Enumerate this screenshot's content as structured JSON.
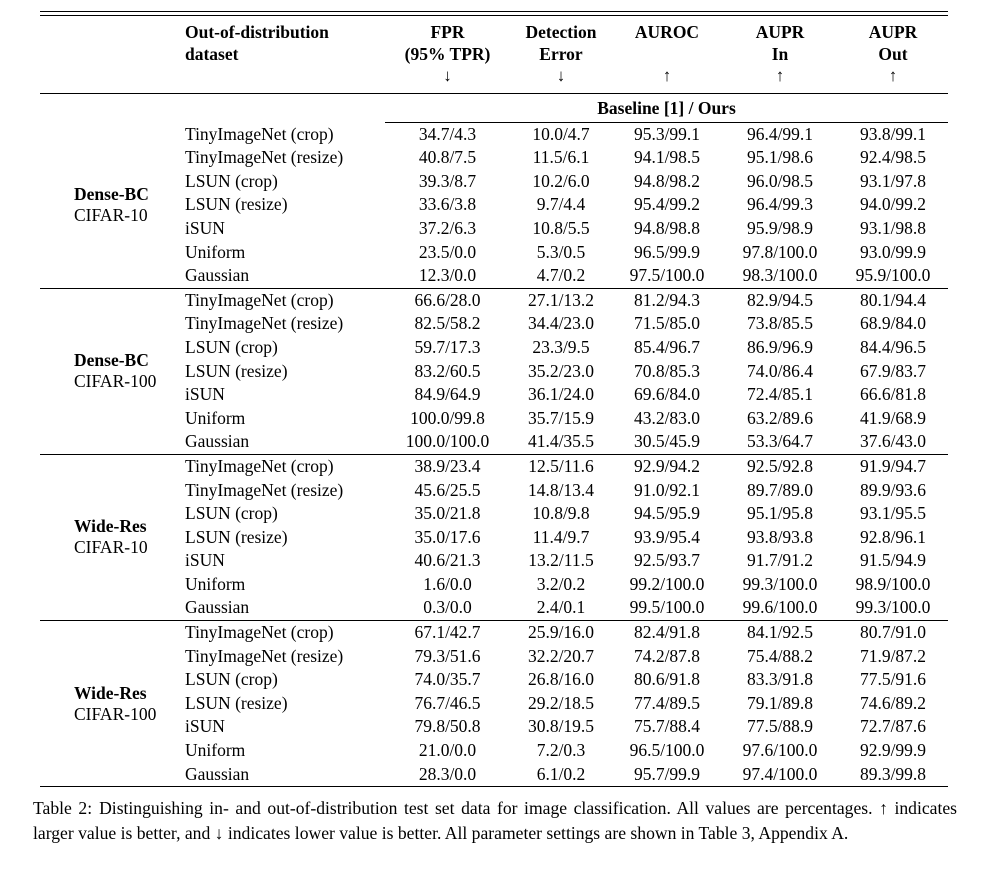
{
  "colors": {
    "background": "#ffffff",
    "text": "#000000",
    "rule": "#000000"
  },
  "table": {
    "header": {
      "cols": [
        {
          "line1": "Out-of-distribution",
          "line2": "dataset",
          "arrow": ""
        },
        {
          "line1": "FPR",
          "line2": "(95% TPR)",
          "arrow": "↓"
        },
        {
          "line1": "Detection",
          "line2": "Error",
          "arrow": "↓"
        },
        {
          "line1": "AUROC",
          "line2": "",
          "arrow": "↑"
        },
        {
          "line1": "AUPR",
          "line2": "In",
          "arrow": "↑"
        },
        {
          "line1": "AUPR",
          "line2": "Out",
          "arrow": "↑"
        }
      ],
      "subheader": "Baseline [1] / Ours"
    },
    "value_format": "baseline/ours",
    "sections": [
      {
        "model": "Dense-BC",
        "dataset": "CIFAR-10",
        "rows": [
          {
            "ood": "TinyImageNet (crop)",
            "values": [
              "34.7/4.3",
              "10.0/4.7",
              "95.3/99.1",
              "96.4/99.1",
              "93.8/99.1"
            ]
          },
          {
            "ood": "TinyImageNet (resize)",
            "values": [
              "40.8/7.5",
              "11.5/6.1",
              "94.1/98.5",
              "95.1/98.6",
              "92.4/98.5"
            ]
          },
          {
            "ood": "LSUN (crop)",
            "values": [
              "39.3/8.7",
              "10.2/6.0",
              "94.8/98.2",
              "96.0/98.5",
              "93.1/97.8"
            ]
          },
          {
            "ood": "LSUN (resize)",
            "values": [
              "33.6/3.8",
              "9.7/4.4",
              "95.4/99.2",
              "96.4/99.3",
              "94.0/99.2"
            ]
          },
          {
            "ood": "iSUN",
            "values": [
              "37.2/6.3",
              "10.8/5.5",
              "94.8/98.8",
              "95.9/98.9",
              "93.1/98.8"
            ]
          },
          {
            "ood": "Uniform",
            "values": [
              "23.5/0.0",
              "5.3/0.5",
              "96.5/99.9",
              "97.8/100.0",
              "93.0/99.9"
            ]
          },
          {
            "ood": "Gaussian",
            "values": [
              "12.3/0.0",
              "4.7/0.2",
              "97.5/100.0",
              "98.3/100.0",
              "95.9/100.0"
            ]
          }
        ]
      },
      {
        "model": "Dense-BC",
        "dataset": "CIFAR-100",
        "rows": [
          {
            "ood": "TinyImageNet (crop)",
            "values": [
              "66.6/28.0",
              "27.1/13.2",
              "81.2/94.3",
              "82.9/94.5",
              "80.1/94.4"
            ]
          },
          {
            "ood": "TinyImageNet (resize)",
            "values": [
              "82.5/58.2",
              "34.4/23.0",
              "71.5/85.0",
              "73.8/85.5",
              "68.9/84.0"
            ]
          },
          {
            "ood": "LSUN (crop)",
            "values": [
              "59.7/17.3",
              "23.3/9.5",
              "85.4/96.7",
              "86.9/96.9",
              "84.4/96.5"
            ]
          },
          {
            "ood": "LSUN (resize)",
            "values": [
              "83.2/60.5",
              "35.2/23.0",
              "70.8/85.3",
              "74.0/86.4",
              "67.9/83.7"
            ]
          },
          {
            "ood": "iSUN",
            "values": [
              "84.9/64.9",
              "36.1/24.0",
              "69.6/84.0",
              "72.4/85.1",
              "66.6/81.8"
            ]
          },
          {
            "ood": "Uniform",
            "values": [
              "100.0/99.8",
              "35.7/15.9",
              "43.2/83.0",
              "63.2/89.6",
              "41.9/68.9"
            ]
          },
          {
            "ood": "Gaussian",
            "values": [
              "100.0/100.0",
              "41.4/35.5",
              "30.5/45.9",
              "53.3/64.7",
              "37.6/43.0"
            ]
          }
        ]
      },
      {
        "model": "Wide-Res",
        "dataset": "CIFAR-10",
        "rows": [
          {
            "ood": "TinyImageNet (crop)",
            "values": [
              "38.9/23.4",
              "12.5/11.6",
              "92.9/94.2",
              "92.5/92.8",
              "91.9/94.7"
            ]
          },
          {
            "ood": "TinyImageNet (resize)",
            "values": [
              "45.6/25.5",
              "14.8/13.4",
              "91.0/92.1",
              "89.7/89.0",
              "89.9/93.6"
            ]
          },
          {
            "ood": "LSUN (crop)",
            "values": [
              "35.0/21.8",
              "10.8/9.8",
              "94.5/95.9",
              "95.1/95.8",
              "93.1/95.5"
            ]
          },
          {
            "ood": "LSUN (resize)",
            "values": [
              "35.0/17.6",
              "11.4/9.7",
              "93.9/95.4",
              "93.8/93.8",
              "92.8/96.1"
            ]
          },
          {
            "ood": "iSUN",
            "values": [
              "40.6/21.3",
              "13.2/11.5",
              "92.5/93.7",
              "91.7/91.2",
              "91.5/94.9"
            ]
          },
          {
            "ood": "Uniform",
            "values": [
              "1.6/0.0",
              "3.2/0.2",
              "99.2/100.0",
              "99.3/100.0",
              "98.9/100.0"
            ]
          },
          {
            "ood": "Gaussian",
            "values": [
              "0.3/0.0",
              "2.4/0.1",
              "99.5/100.0",
              "99.6/100.0",
              "99.3/100.0"
            ]
          }
        ]
      },
      {
        "model": "Wide-Res",
        "dataset": "CIFAR-100",
        "rows": [
          {
            "ood": "TinyImageNet (crop)",
            "values": [
              "67.1/42.7",
              "25.9/16.0",
              "82.4/91.8",
              "84.1/92.5",
              "80.7/91.0"
            ]
          },
          {
            "ood": "TinyImageNet (resize)",
            "values": [
              "79.3/51.6",
              "32.2/20.7",
              "74.2/87.8",
              "75.4/88.2",
              "71.9/87.2"
            ]
          },
          {
            "ood": "LSUN (crop)",
            "values": [
              "74.0/35.7",
              "26.8/16.0",
              "80.6/91.8",
              "83.3/91.8",
              "77.5/91.6"
            ]
          },
          {
            "ood": "LSUN (resize)",
            "values": [
              "76.7/46.5",
              "29.2/18.5",
              "77.4/89.5",
              "79.1/89.8",
              "74.6/89.2"
            ]
          },
          {
            "ood": "iSUN",
            "values": [
              "79.8/50.8",
              "30.8/19.5",
              "75.7/88.4",
              "77.5/88.9",
              "72.7/87.6"
            ]
          },
          {
            "ood": "Uniform",
            "values": [
              "21.0/0.0",
              "7.2/0.3",
              "96.5/100.0",
              "97.6/100.0",
              "92.9/99.9"
            ]
          },
          {
            "ood": "Gaussian",
            "values": [
              "28.3/0.0",
              "6.1/0.2",
              "95.7/99.9",
              "97.4/100.0",
              "89.3/99.8"
            ]
          }
        ]
      }
    ]
  },
  "caption": {
    "label": "Table 2:",
    "text": "Distinguishing in- and out-of-distribution test set data for image classification. All values are percentages. ↑ indicates larger value is better, and ↓ indicates lower value is better. All parameter settings are shown in Table 3, Appendix A."
  }
}
